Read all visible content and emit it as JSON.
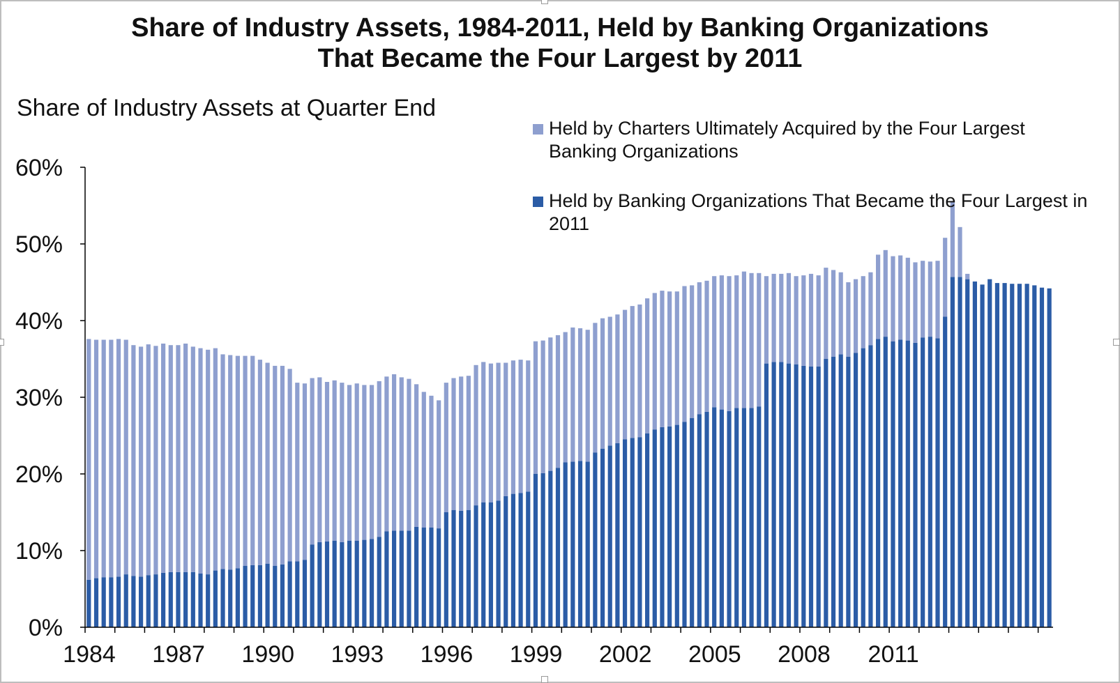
{
  "title_line1": "Share of Industry Assets, 1984-2011, Held by Banking Organizations",
  "title_line2": "That Became the Four Largest by 2011",
  "colors": {
    "light": "#8e9fcf",
    "dark": "#2b5ca6"
  },
  "chart_data": {
    "type": "bar",
    "stacked": true,
    "title": "Share of Industry Assets, 1984-2011, Held by Banking Organizations That Became the Four Largest by 2011",
    "ylabel": "Share of Industry Assets at Quarter End",
    "xlabel": "",
    "ylim": [
      0,
      60
    ],
    "yticks": [
      "0%",
      "10%",
      "20%",
      "30%",
      "40%",
      "50%",
      "60%"
    ],
    "xticks": [
      "1984",
      "1987",
      "1990",
      "1993",
      "1996",
      "1999",
      "2002",
      "2005",
      "2008",
      "2011"
    ],
    "legend_position": "top-right",
    "x_start": "1984 Q1",
    "frequency": "quarterly",
    "series": [
      {
        "name": "Held by Charters Ultimately Acquired by the Four Largest Banking Organizations",
        "color": "#8e9fcf",
        "values": [
          31.4,
          31.1,
          31.0,
          31.0,
          31.0,
          30.6,
          30.1,
          30.0,
          30.1,
          29.8,
          29.9,
          29.6,
          29.6,
          29.8,
          29.4,
          29.4,
          29.3,
          29.0,
          28.0,
          28.0,
          27.7,
          27.4,
          27.3,
          26.8,
          26.2,
          26.1,
          25.9,
          25.1,
          23.3,
          23.0,
          21.7,
          21.5,
          20.8,
          20.9,
          20.8,
          20.3,
          20.5,
          20.2,
          20.1,
          20.3,
          20.2,
          20.4,
          20.0,
          19.8,
          18.6,
          17.7,
          17.2,
          16.7,
          16.9,
          17.2,
          17.5,
          17.5,
          18.3,
          18.3,
          18.1,
          18.0,
          17.4,
          17.4,
          17.4,
          17.1,
          17.3,
          17.3,
          17.4,
          17.3,
          17.0,
          17.5,
          17.3,
          17.2,
          16.9,
          17.0,
          16.8,
          16.8,
          16.9,
          17.2,
          17.3,
          17.6,
          17.8,
          17.8,
          17.6,
          17.4,
          17.7,
          17.3,
          17.2,
          17.1,
          17.1,
          17.5,
          17.6,
          17.3,
          17.8,
          17.6,
          17.4,
          11.4,
          11.5,
          11.5,
          11.8,
          11.5,
          11.8,
          12.1,
          11.9,
          11.9,
          11.3,
          10.7,
          9.7,
          9.6,
          9.4,
          9.5,
          11.0,
          11.3,
          11.1,
          11.0,
          10.8,
          10.5,
          10.0,
          9.8,
          10.1,
          10.3,
          9.9,
          6.5,
          0.7,
          0,
          0,
          0,
          0,
          0,
          0,
          0,
          0,
          0,
          0,
          0,
          0,
          0
        ]
      },
      {
        "name": "Held by Banking Organizations That Became the Four Largest in 2011",
        "color": "#2b5ca6",
        "values": [
          6.2,
          6.4,
          6.5,
          6.5,
          6.6,
          6.9,
          6.7,
          6.6,
          6.8,
          6.9,
          7.1,
          7.2,
          7.2,
          7.2,
          7.2,
          7.0,
          6.9,
          7.4,
          7.6,
          7.5,
          7.7,
          8.0,
          8.1,
          8.1,
          8.3,
          8.0,
          8.2,
          8.6,
          8.6,
          8.8,
          10.8,
          11.1,
          11.2,
          11.3,
          11.1,
          11.3,
          11.3,
          11.4,
          11.5,
          11.8,
          12.5,
          12.6,
          12.6,
          12.6,
          13.1,
          13.0,
          13.0,
          12.9,
          15.0,
          15.3,
          15.2,
          15.3,
          15.9,
          16.3,
          16.3,
          16.5,
          17.1,
          17.4,
          17.5,
          17.7,
          20.0,
          20.1,
          20.4,
          20.8,
          21.5,
          21.6,
          21.7,
          21.6,
          22.8,
          23.3,
          23.7,
          24.0,
          24.5,
          24.7,
          24.8,
          25.3,
          25.8,
          26.1,
          26.2,
          26.4,
          26.8,
          27.3,
          27.8,
          28.1,
          28.7,
          28.4,
          28.2,
          28.6,
          28.6,
          28.6,
          28.8,
          34.4,
          34.6,
          34.6,
          34.4,
          34.3,
          34.1,
          34.0,
          34.0,
          35.0,
          35.3,
          35.6,
          35.3,
          35.8,
          36.4,
          36.8,
          37.6,
          37.9,
          37.3,
          37.5,
          37.4,
          37.1,
          37.8,
          37.9,
          37.7,
          40.5,
          45.7,
          45.7,
          45.4,
          45.1,
          44.7,
          45.4,
          44.9,
          44.9,
          44.8,
          44.8,
          44.8,
          44.6,
          44.3,
          44.2
        ]
      }
    ]
  }
}
